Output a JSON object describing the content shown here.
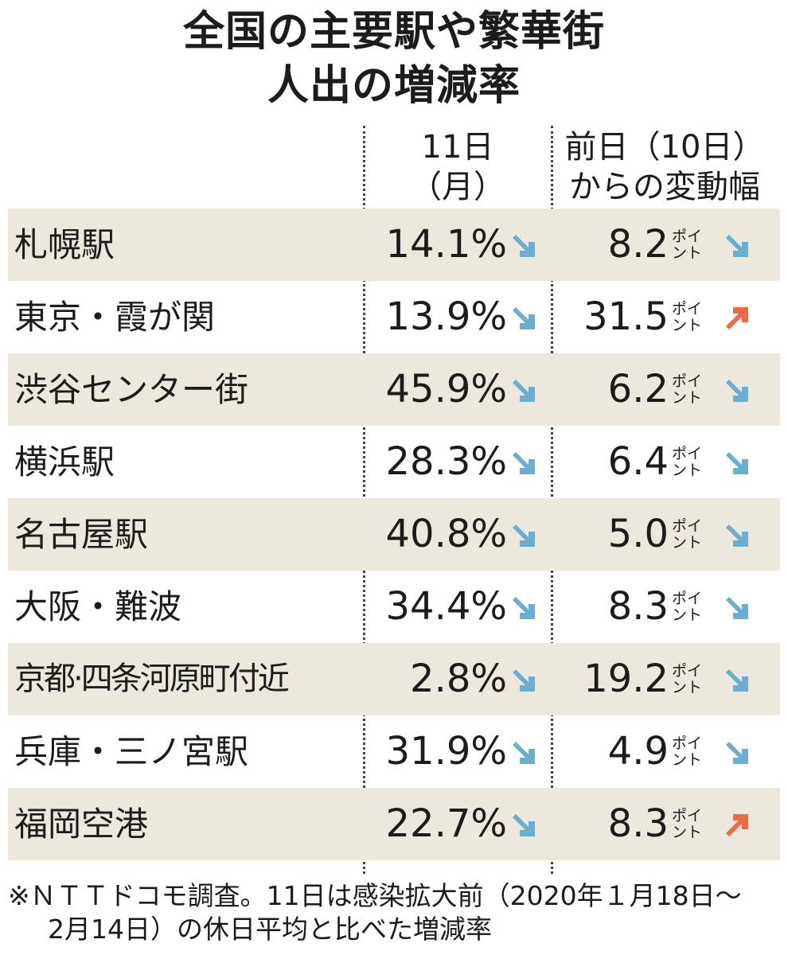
{
  "title": {
    "line1": "全国の主要駅や繁華街",
    "line2": "人出の増減率"
  },
  "columns": {
    "col1_line1": "11日",
    "col1_line2": "（月）",
    "col2_line1": "前日（10日）",
    "col2_line2": "からの変動幅"
  },
  "unit": {
    "line1": "ポイ",
    "line2": "ント"
  },
  "colors": {
    "down_arrow": "#6aaed0",
    "up_arrow": "#ee6a46",
    "shade": "#ece8dd"
  },
  "chart_data": {
    "type": "table",
    "title": "全国の主要駅や繁華街 人出の増減率",
    "columns": [
      "11日（月）",
      "前日（10日）からの変動幅"
    ],
    "rows": [
      {
        "name": "札幌駅",
        "pct": "14.1%",
        "pct_dir": "down",
        "pts": "8.2",
        "pts_dir": "down"
      },
      {
        "name": "東京・霞が関",
        "pct": "13.9%",
        "pct_dir": "down",
        "pts": "31.5",
        "pts_dir": "up"
      },
      {
        "name": "渋谷センター街",
        "pct": "45.9%",
        "pct_dir": "down",
        "pts": "6.2",
        "pts_dir": "down"
      },
      {
        "name": "横浜駅",
        "pct": "28.3%",
        "pct_dir": "down",
        "pts": "6.4",
        "pts_dir": "down"
      },
      {
        "name": "名古屋駅",
        "pct": "40.8%",
        "pct_dir": "down",
        "pts": "5.0",
        "pts_dir": "down"
      },
      {
        "name": "大阪・難波",
        "pct": "34.4%",
        "pct_dir": "down",
        "pts": "8.3",
        "pts_dir": "down"
      },
      {
        "name": "京都·四条河原町付近",
        "pct": "2.8%",
        "pct_dir": "down",
        "pts": "19.2",
        "pts_dir": "down"
      },
      {
        "name": "兵庫・三ノ宮駅",
        "pct": "31.9%",
        "pct_dir": "down",
        "pts": "4.9",
        "pts_dir": "down"
      },
      {
        "name": "福岡空港",
        "pct": "22.7%",
        "pct_dir": "down",
        "pts": "8.3",
        "pts_dir": "up"
      }
    ]
  },
  "footnote": {
    "line1": "※ＮＴＴドコモ調査。11日は感染拡大前（2020年１月18日～",
    "line2": "2月14日）の休日平均と比べた増減率"
  }
}
